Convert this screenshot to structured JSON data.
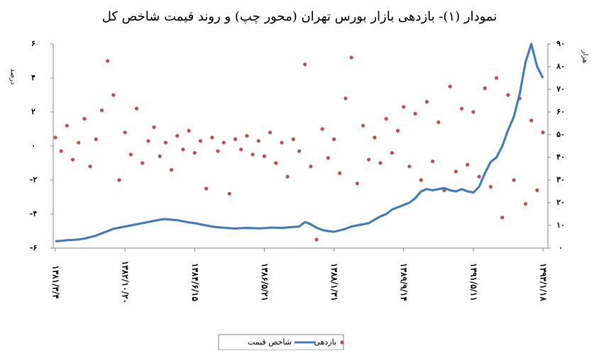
{
  "chart_data": {
    "type": "line",
    "title": "نمودار (۱)- بازدهی بازار بورس تهران (محور چپ) و روند قیمت شاخص کل",
    "ylabel": "درصد",
    "y2label": "هزار",
    "categories": [
      "۱۳۸۱/۳/۴",
      null,
      null,
      null,
      null,
      null,
      null,
      null,
      null,
      null,
      null,
      null,
      "۱۳۸۲/۱۰/۲۰",
      null,
      null,
      null,
      null,
      null,
      null,
      null,
      null,
      null,
      null,
      null,
      "۱۳۸۴/۶/۱۵",
      null,
      null,
      null,
      null,
      null,
      null,
      null,
      null,
      null,
      null,
      null,
      "۱۳۸۶/۵/۲۱",
      null,
      null,
      null,
      null,
      null,
      null,
      null,
      null,
      null,
      null,
      null,
      "۱۳۸۸/۱/۳۱",
      null,
      null,
      null,
      null,
      null,
      null,
      null,
      null,
      null,
      null,
      null,
      "۱۳۸۹/۹/۱۴",
      null,
      null,
      null,
      null,
      null,
      null,
      null,
      null,
      null,
      null,
      null,
      "۱۳۹۱/۵/۱۱",
      null,
      null,
      null,
      null,
      null,
      null,
      null,
      null,
      null,
      null,
      null,
      "۱۳۹۳/۱/۱۸"
    ],
    "series": [
      {
        "name": "بازدهی",
        "type": "scatter",
        "color": "#c0504d",
        "axis": "y",
        "values": [
          0.5,
          -0.3,
          1.2,
          -0.8,
          0.2,
          1.6,
          -1.2,
          0.4,
          2.1,
          5.0,
          3.0,
          -2.0,
          0.8,
          -0.5,
          2.2,
          -1.0,
          0.3,
          1.1,
          -0.6,
          0.2,
          -1.4,
          0.6,
          -0.2,
          0.9,
          -0.4,
          0.3,
          -2.5,
          0.5,
          -0.3,
          0.2,
          -2.8,
          0.4,
          -0.2,
          0.6,
          -0.5,
          0.3,
          -0.6,
          0.8,
          -1.0,
          0.2,
          -1.8,
          0.4,
          -0.3,
          4.8,
          -1.2,
          -5.5,
          1.0,
          -0.7,
          0.4,
          -1.6,
          2.8,
          5.2,
          -2.2,
          1.2,
          -0.8,
          0.5,
          -1.0,
          1.6,
          -0.4,
          0.9,
          2.3,
          -1.2,
          1.9,
          -2.0,
          2.6,
          -0.9,
          1.4,
          -2.6,
          3.5,
          -1.5,
          2.2,
          -1.1,
          2.0,
          -1.8,
          3.4,
          -2.4,
          4.0,
          -4.2,
          3.0,
          -2.0,
          2.8,
          -3.4,
          1.5,
          -2.6,
          0.8
        ]
      },
      {
        "name": "شاخص قیمت",
        "type": "line",
        "color": "#4a7ebb",
        "axis": "y2",
        "values": [
          3,
          3.2,
          3.5,
          3.6,
          3.8,
          4.2,
          4.8,
          5.5,
          6.5,
          7.5,
          8.5,
          9,
          9.5,
          10,
          10.5,
          11,
          11.5,
          12,
          12.5,
          12.8,
          12.5,
          12.3,
          11.8,
          11.3,
          11,
          10.5,
          10,
          9.5,
          9.2,
          9,
          8.8,
          8.6,
          8.8,
          8.9,
          8.8,
          8.7,
          8.8,
          9,
          9,
          8.9,
          9.1,
          9.3,
          9.5,
          11.5,
          10.5,
          9,
          8,
          7.5,
          7.2,
          7.8,
          8.5,
          9.5,
          10,
          10.5,
          11,
          12.5,
          14,
          15,
          17,
          18,
          19,
          20,
          22,
          25,
          26,
          25.5,
          26,
          26.5,
          25.5,
          25,
          26,
          25,
          24.5,
          27,
          33,
          38,
          40,
          45,
          52,
          58,
          68,
          82,
          90,
          80,
          75
        ]
      }
    ],
    "ylim": [
      -6,
      6
    ],
    "yticks": [
      {
        "value": 6,
        "label": "۶"
      },
      {
        "value": 4,
        "label": "۴"
      },
      {
        "value": 2,
        "label": "۲"
      },
      {
        "value": 0,
        "label": "٠"
      },
      {
        "value": -2,
        "label": "-۲"
      },
      {
        "value": -4,
        "label": "-۴"
      },
      {
        "value": -6,
        "label": "-۶"
      }
    ],
    "y2lim": [
      0,
      90
    ],
    "y2ticks": [
      {
        "value": 90,
        "label": "۹۰"
      },
      {
        "value": 80,
        "label": "۸۰"
      },
      {
        "value": 70,
        "label": "۷۰"
      },
      {
        "value": 60,
        "label": "۶۰"
      },
      {
        "value": 50,
        "label": "۵۰"
      },
      {
        "value": 40,
        "label": "۴۰"
      },
      {
        "value": 30,
        "label": "۳۰"
      },
      {
        "value": 20,
        "label": "۲۰"
      },
      {
        "value": 10,
        "label": "۱۰"
      },
      {
        "value": 0,
        "label": "٠"
      }
    ],
    "grid": false,
    "legend": "bottom"
  }
}
